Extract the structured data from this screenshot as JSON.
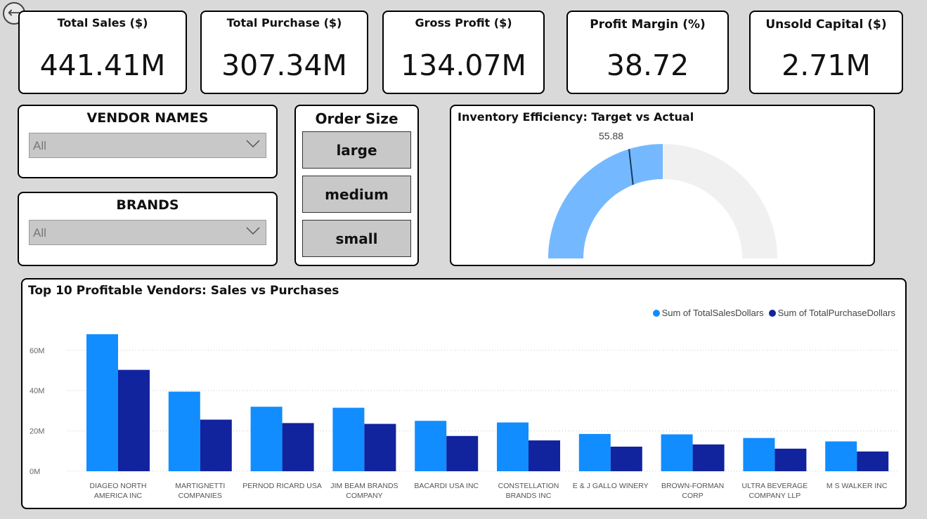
{
  "kpis": [
    {
      "title": "Total Sales ($)",
      "value": "441.41M"
    },
    {
      "title": "Total Purchase ($)",
      "value": "307.34M"
    },
    {
      "title": "Gross Profit ($)",
      "value": "134.07M"
    },
    {
      "title": "Profit Margin (%)",
      "value": "38.72"
    },
    {
      "title": "Unsold Capital ($)",
      "value": "2.71M"
    }
  ],
  "slicers": {
    "vendor": {
      "title": "VENDOR NAMES",
      "value": "All"
    },
    "brand": {
      "title": "BRANDS",
      "value": "All"
    }
  },
  "order_size": {
    "title": "Order Size",
    "options": [
      "large",
      "medium",
      "small"
    ]
  },
  "gauge": {
    "title": "Inventory Efficiency: Target vs Actual",
    "value": 55.88,
    "value_label": "55.88",
    "min": 0,
    "max": 100,
    "colors": {
      "fill": "#74b9ff",
      "track": "#f0f0f0",
      "target": "#1a3a5c"
    }
  },
  "icons": {
    "back": "back-arrow-icon",
    "dropdown": "chevron-down-icon"
  },
  "chart_data": {
    "type": "bar",
    "title": "Top 10 Profitable Vendors: Sales vs Purchases",
    "categories": [
      [
        "DIAGEO NORTH",
        "AMERICA INC"
      ],
      [
        "MARTIGNETTI",
        "COMPANIES"
      ],
      [
        "PERNOD RICARD USA"
      ],
      [
        "JIM BEAM BRANDS",
        "COMPANY"
      ],
      [
        "BACARDI USA INC"
      ],
      [
        "CONSTELLATION",
        "BRANDS INC"
      ],
      [
        "E & J GALLO WINERY"
      ],
      [
        "BROWN-FORMAN",
        "CORP"
      ],
      [
        "ULTRA BEVERAGE",
        "COMPANY LLP"
      ],
      [
        "M S WALKER INC"
      ]
    ],
    "series": [
      {
        "name": "Sum of TotalSalesDollars",
        "color": "#118dff",
        "values": [
          68,
          39.5,
          32,
          31.5,
          25,
          24.2,
          18.5,
          18.3,
          16.5,
          14.8
        ]
      },
      {
        "name": "Sum of TotalPurchaseDollars",
        "color": "#12239e",
        "values": [
          50.3,
          25.6,
          23.9,
          23.5,
          17.5,
          15.3,
          12.2,
          13.3,
          11.2,
          9.8
        ]
      }
    ],
    "yticks": [
      0,
      20,
      40,
      60
    ],
    "ytick_labels": [
      "0M",
      "20M",
      "40M",
      "60M"
    ],
    "ylim": [
      0,
      72
    ],
    "legend": "top-right",
    "grid": true
  }
}
